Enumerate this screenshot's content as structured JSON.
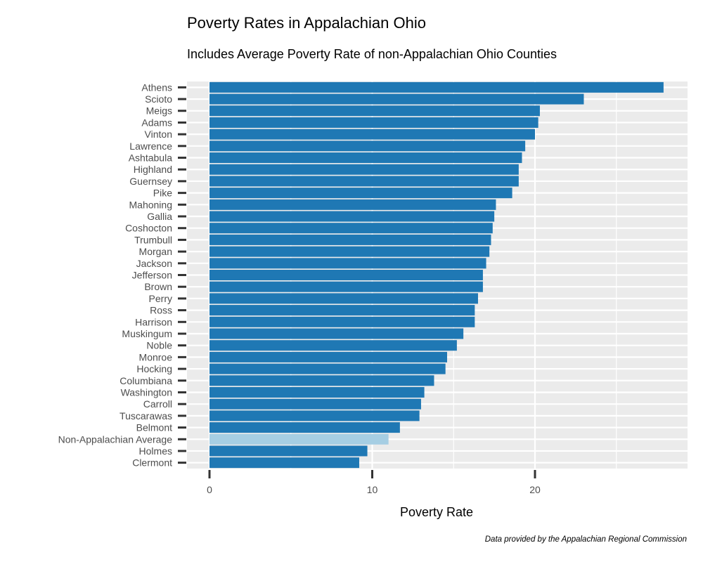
{
  "chart_data": {
    "type": "bar",
    "orientation": "horizontal",
    "title": "Poverty Rates in Appalachian Ohio",
    "subtitle": "Includes Average Poverty Rate of non-Appalachian Ohio Counties",
    "xlabel": "Poverty Rate",
    "ylabel": "",
    "caption": "Data provided by the Appalachian Regional Commission",
    "xlim": [
      0,
      29.3
    ],
    "x_ticks": [
      0,
      10,
      20
    ],
    "grid": true,
    "legend": "none",
    "colors": {
      "appalachian": "#1f78b4",
      "non_appalachian": "#a6cee3",
      "panel": "#ebebeb",
      "grid": "#ffffff"
    },
    "categories": [
      "Athens",
      "Scioto",
      "Meigs",
      "Adams",
      "Vinton",
      "Lawrence",
      "Ashtabula",
      "Highland",
      "Guernsey",
      "Pike",
      "Mahoning",
      "Gallia",
      "Coshocton",
      "Trumbull",
      "Morgan",
      "Jackson",
      "Jefferson",
      "Brown",
      "Perry",
      "Ross",
      "Harrison",
      "Muskingum",
      "Noble",
      "Monroe",
      "Hocking",
      "Columbiana",
      "Washington",
      "Carroll",
      "Tuscarawas",
      "Belmont",
      "Non-Appalachian Average",
      "Holmes",
      "Clermont"
    ],
    "values": [
      27.9,
      23.0,
      20.3,
      20.2,
      20.0,
      19.4,
      19.2,
      19.0,
      19.0,
      18.6,
      17.6,
      17.5,
      17.4,
      17.3,
      17.2,
      17.0,
      16.8,
      16.8,
      16.5,
      16.3,
      16.3,
      15.6,
      15.2,
      14.6,
      14.5,
      13.8,
      13.2,
      13.0,
      12.9,
      11.7,
      11.0,
      9.7,
      9.2
    ]
  }
}
